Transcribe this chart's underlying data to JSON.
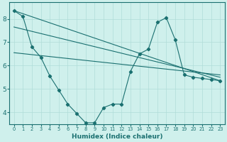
{
  "xlabel": "Humidex (Indice chaleur)",
  "ylabel": "",
  "bg_color": "#cff0ec",
  "line_color": "#1a7070",
  "grid_color": "#b0ddd8",
  "xlim": [
    -0.5,
    23.5
  ],
  "ylim": [
    3.5,
    8.7
  ],
  "yticks": [
    4,
    5,
    6,
    7,
    8
  ],
  "xticks": [
    0,
    1,
    2,
    3,
    4,
    5,
    6,
    7,
    8,
    9,
    10,
    11,
    12,
    13,
    14,
    15,
    16,
    17,
    18,
    19,
    20,
    21,
    22,
    23
  ],
  "xtick_labels": [
    "0",
    "1",
    "2",
    "3",
    "4",
    "5",
    "6",
    "7",
    "8",
    "9",
    "10",
    "11",
    "12",
    "13",
    "14",
    "15",
    "16",
    "17",
    "18",
    "19",
    "20",
    "21",
    "22",
    "23"
  ],
  "series1_x": [
    0,
    1,
    2,
    3,
    4,
    5,
    6,
    7,
    8,
    9,
    10,
    11,
    12,
    13,
    14,
    15,
    16,
    17,
    18,
    19,
    20,
    21,
    22,
    23
  ],
  "series1_y": [
    8.35,
    8.1,
    6.8,
    6.35,
    5.55,
    4.95,
    4.35,
    3.95,
    3.55,
    3.55,
    4.2,
    4.35,
    4.35,
    5.75,
    6.5,
    6.7,
    7.85,
    8.05,
    7.1,
    5.6,
    5.5,
    5.45,
    5.4,
    5.35
  ],
  "trend1_x": [
    0,
    23
  ],
  "trend1_y": [
    8.35,
    5.35
  ],
  "trend2_x": [
    0,
    23
  ],
  "trend2_y": [
    7.65,
    5.5
  ],
  "trend3_x": [
    0,
    23
  ],
  "trend3_y": [
    6.55,
    5.6
  ],
  "font_color": "#1a7070",
  "marker": "D",
  "markersize": 2.2,
  "linewidth": 0.8
}
